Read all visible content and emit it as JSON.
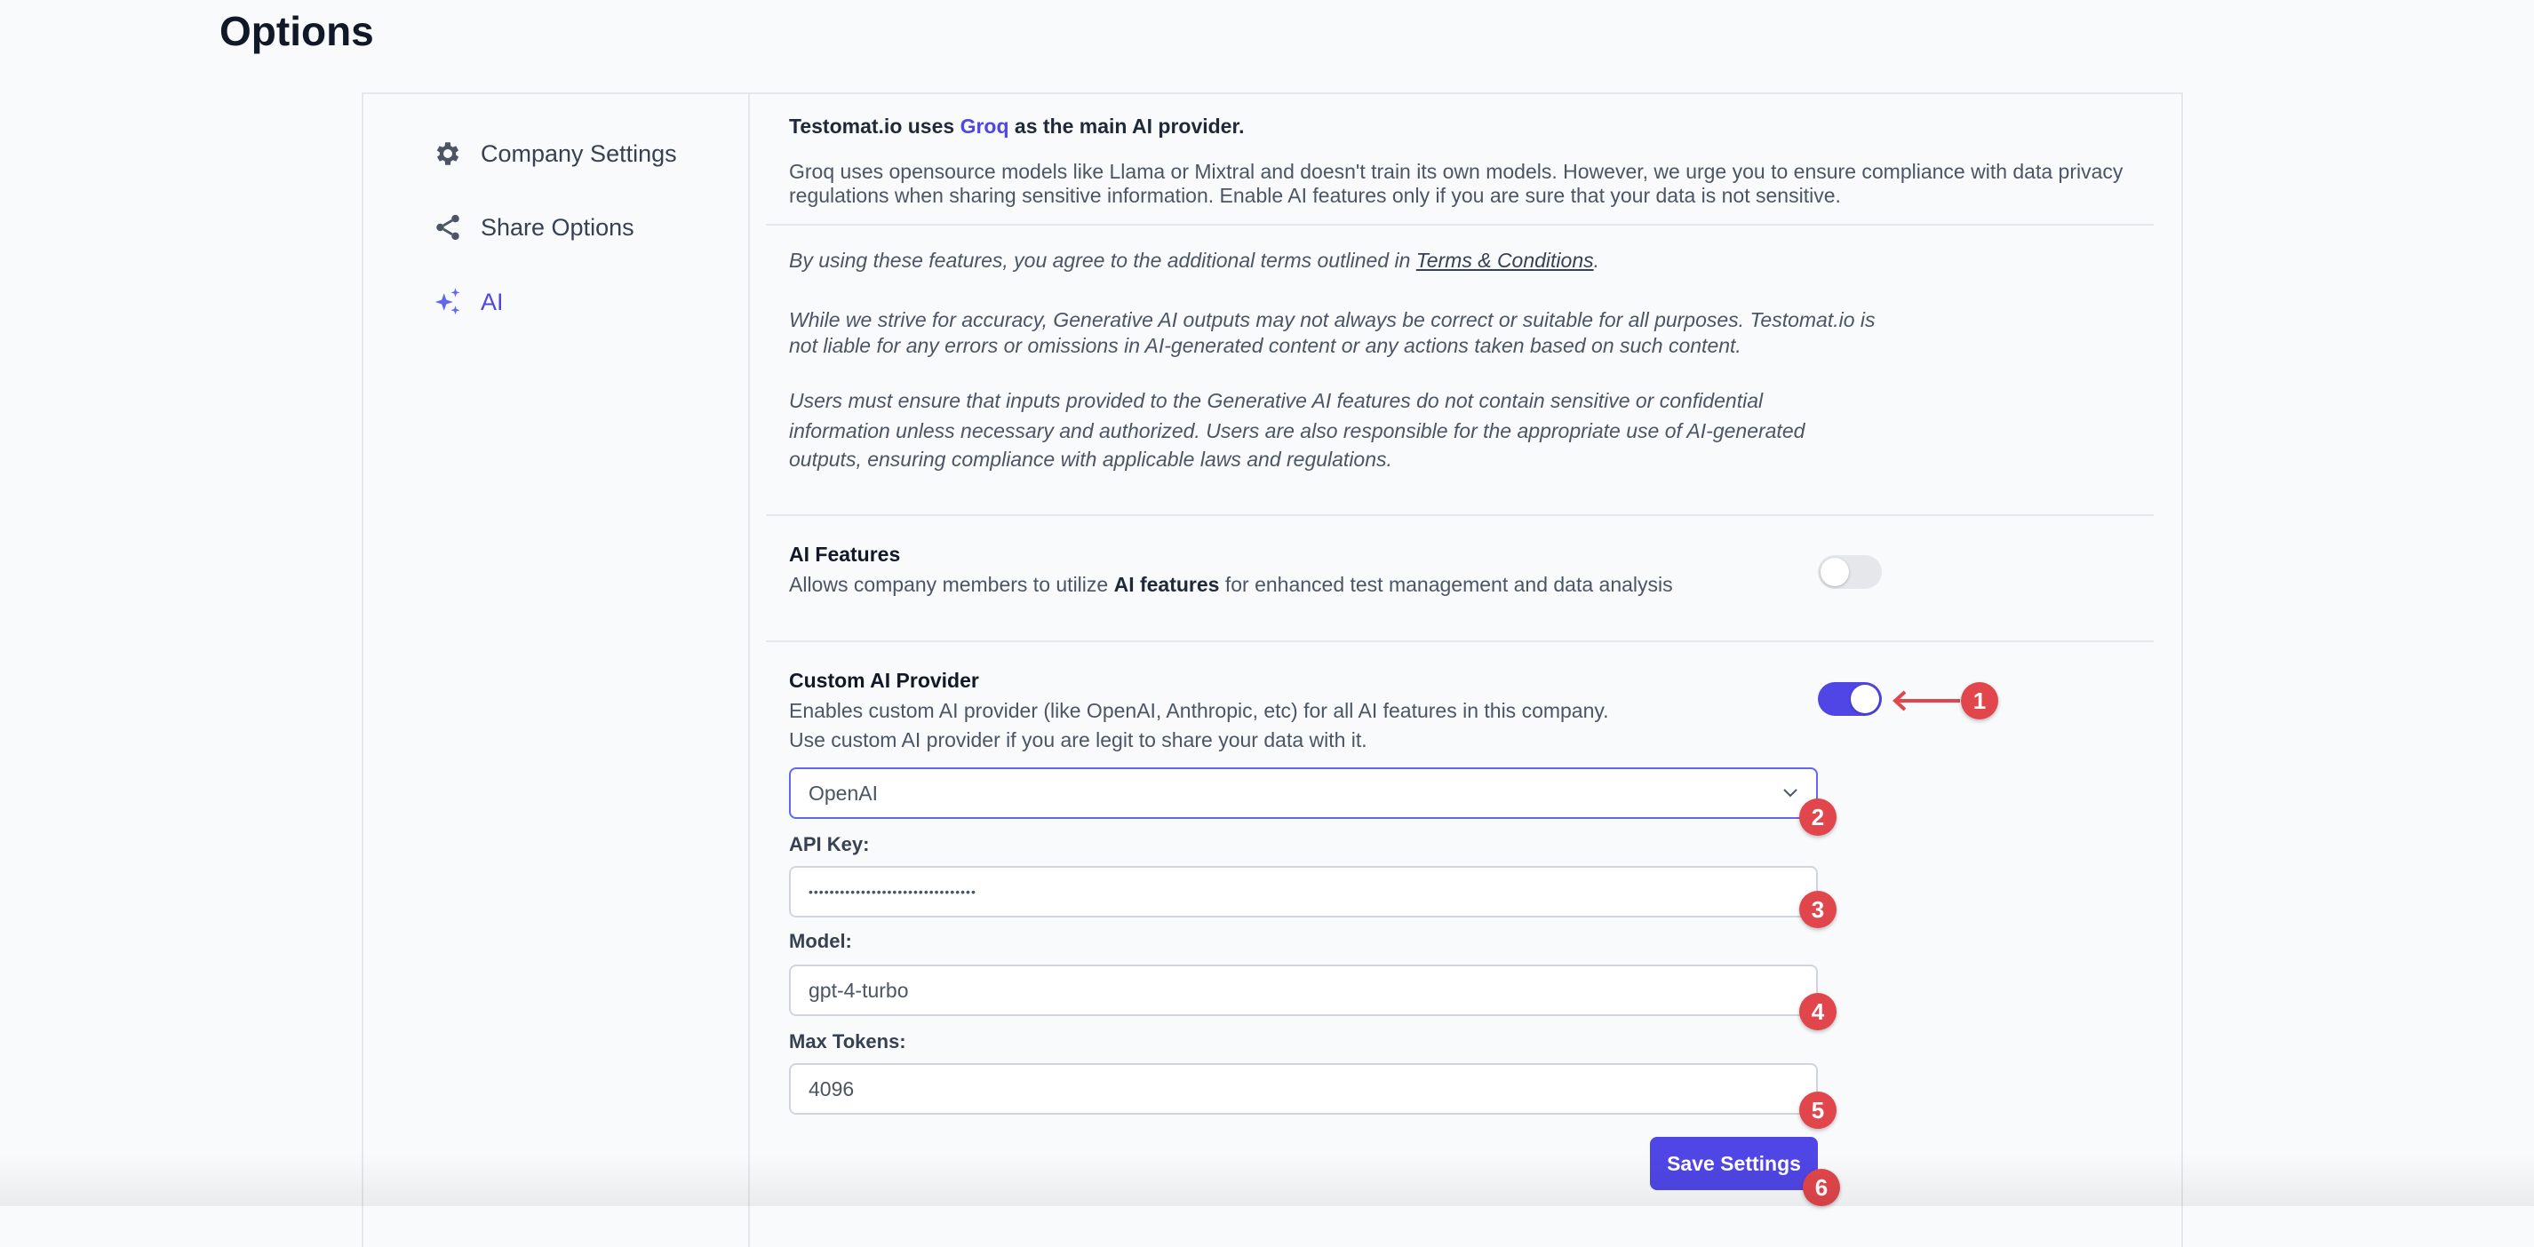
{
  "page": {
    "title": "Options"
  },
  "sidebar": {
    "items": [
      {
        "label": "Company Settings",
        "icon": "gear-icon",
        "active": false
      },
      {
        "label": "Share Options",
        "icon": "share-icon",
        "active": false
      },
      {
        "label": "AI",
        "icon": "sparkles-icon",
        "active": true
      }
    ]
  },
  "intro": {
    "prefix": "Testomat.io uses",
    "provider": "Groq",
    "suffix": "as the main AI provider.",
    "p1": "Groq uses opensource models like Llama or Mixtral and doesn't train its own models. However, we urge you to ensure compliance with data privacy",
    "p2": "regulations when sharing sensitive information. Enable AI features only if you are sure that your data is not sensitive."
  },
  "terms": {
    "prefix": "By using these features, you agree to the additional terms outlined in",
    "link": "Terms & Conditions",
    "suffix": ".",
    "a1": "While we strive for accuracy, Generative AI outputs may not always be correct or suitable for all purposes. Testomat.io is",
    "a2": "not liable for any errors or omissions in AI-generated content or any actions taken based on such content.",
    "b1": "Users must ensure that inputs provided to the Generative AI features do not contain sensitive or confidential",
    "b2": "information unless necessary and authorized. Users are also responsible for the appropriate use of AI-generated",
    "b3": "outputs, ensuring compliance with applicable laws and regulations."
  },
  "ai_features": {
    "title": "AI Features",
    "desc_prefix": "Allows company members to utilize",
    "desc_bold": "AI features",
    "desc_suffix": "for enhanced test management and data analysis",
    "enabled": false
  },
  "custom": {
    "title": "Custom AI Provider",
    "desc1": "Enables custom AI provider (like OpenAI, Anthropic, etc) for all AI features in this company.",
    "desc2": "Use custom AI provider if you are legit to share your data with it.",
    "enabled": true,
    "provider": "OpenAI",
    "api_key_label": "API Key:",
    "api_key_value": "••••••••••••••••••••••••••••••••",
    "model_label": "Model:",
    "model_value": "gpt-4-turbo",
    "max_tokens_label": "Max Tokens:",
    "max_tokens_value": "4096",
    "save_label": "Save Settings"
  },
  "annotations": [
    "1",
    "2",
    "3",
    "4",
    "5",
    "6"
  ],
  "colors": {
    "accent": "#4f46e5",
    "badge": "#e0464b"
  }
}
